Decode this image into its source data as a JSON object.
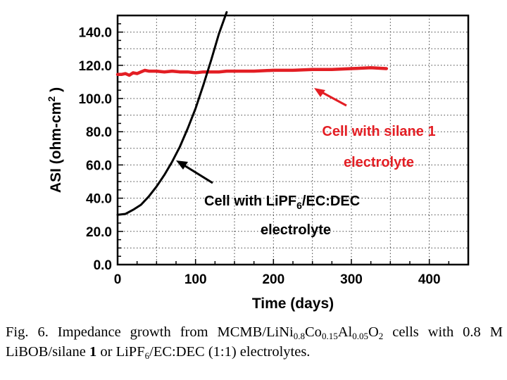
{
  "chart_data": {
    "type": "line",
    "xlabel": "Time (days)",
    "ylabel": "ASI (ohm-cm²)",
    "ylabel_parts": {
      "main": "ASI (ohm-cm",
      "sup": "2",
      "tail": " )"
    },
    "xlim": [
      0,
      450
    ],
    "ylim": [
      0,
      150
    ],
    "x_ticks": [
      0,
      100,
      200,
      300,
      400
    ],
    "y_ticks": [
      0,
      20,
      40,
      60,
      80,
      100,
      120,
      140
    ],
    "y_tick_labels": [
      "0.0",
      "20.0",
      "40.0",
      "60.0",
      "80.0",
      "100.0",
      "120.0",
      "140.0"
    ],
    "grid": true,
    "series": [
      {
        "name": "Cell with silane 1 electrolyte",
        "color": "#e31e24",
        "x": [
          0,
          5,
          10,
          15,
          20,
          25,
          30,
          35,
          40,
          50,
          60,
          70,
          80,
          90,
          100,
          110,
          120,
          130,
          140,
          150,
          175,
          200,
          225,
          250,
          275,
          300,
          325,
          345
        ],
        "y": [
          114.5,
          114.5,
          115,
          114,
          115.5,
          115,
          116,
          117,
          116.5,
          116.5,
          116,
          116.5,
          116,
          116,
          115.5,
          116,
          116,
          116,
          116.5,
          116.5,
          116.5,
          117,
          117,
          117.5,
          117.5,
          118,
          118.5,
          118
        ]
      },
      {
        "name": "Cell with LiPF6/EC:DEC electrolyte",
        "color": "#000000",
        "x": [
          0,
          10,
          20,
          30,
          40,
          50,
          60,
          70,
          80,
          90,
          100,
          110,
          120,
          130,
          140
        ],
        "y": [
          30,
          30.5,
          33,
          36,
          41,
          47,
          54,
          62,
          71,
          82,
          94,
          108,
          123,
          139,
          152
        ]
      }
    ],
    "annotations": [
      {
        "lines": [
          "Cell with silane 1",
          "electrolyte"
        ],
        "color": "#e31e24"
      },
      {
        "lines": [
          "Cell with LiPF",
          "/EC:DEC",
          "electrolyte"
        ],
        "subscript": "6",
        "color": "#000000"
      }
    ]
  },
  "caption": {
    "lead": "Fig. 6. Impedance growth from MCMB/LiNi",
    "sub1": "0.8",
    "t1": "Co",
    "sub2": "0.15",
    "t2": "Al",
    "sub3": "0.05",
    "t3": "O",
    "sub4": "2",
    "t4": " cells with 0.8 M LiBOB/silane ",
    "bold1": "1",
    "t5": " or LiPF",
    "sub5": "6",
    "t6": "/EC:DEC (1:1) electrolytes."
  }
}
